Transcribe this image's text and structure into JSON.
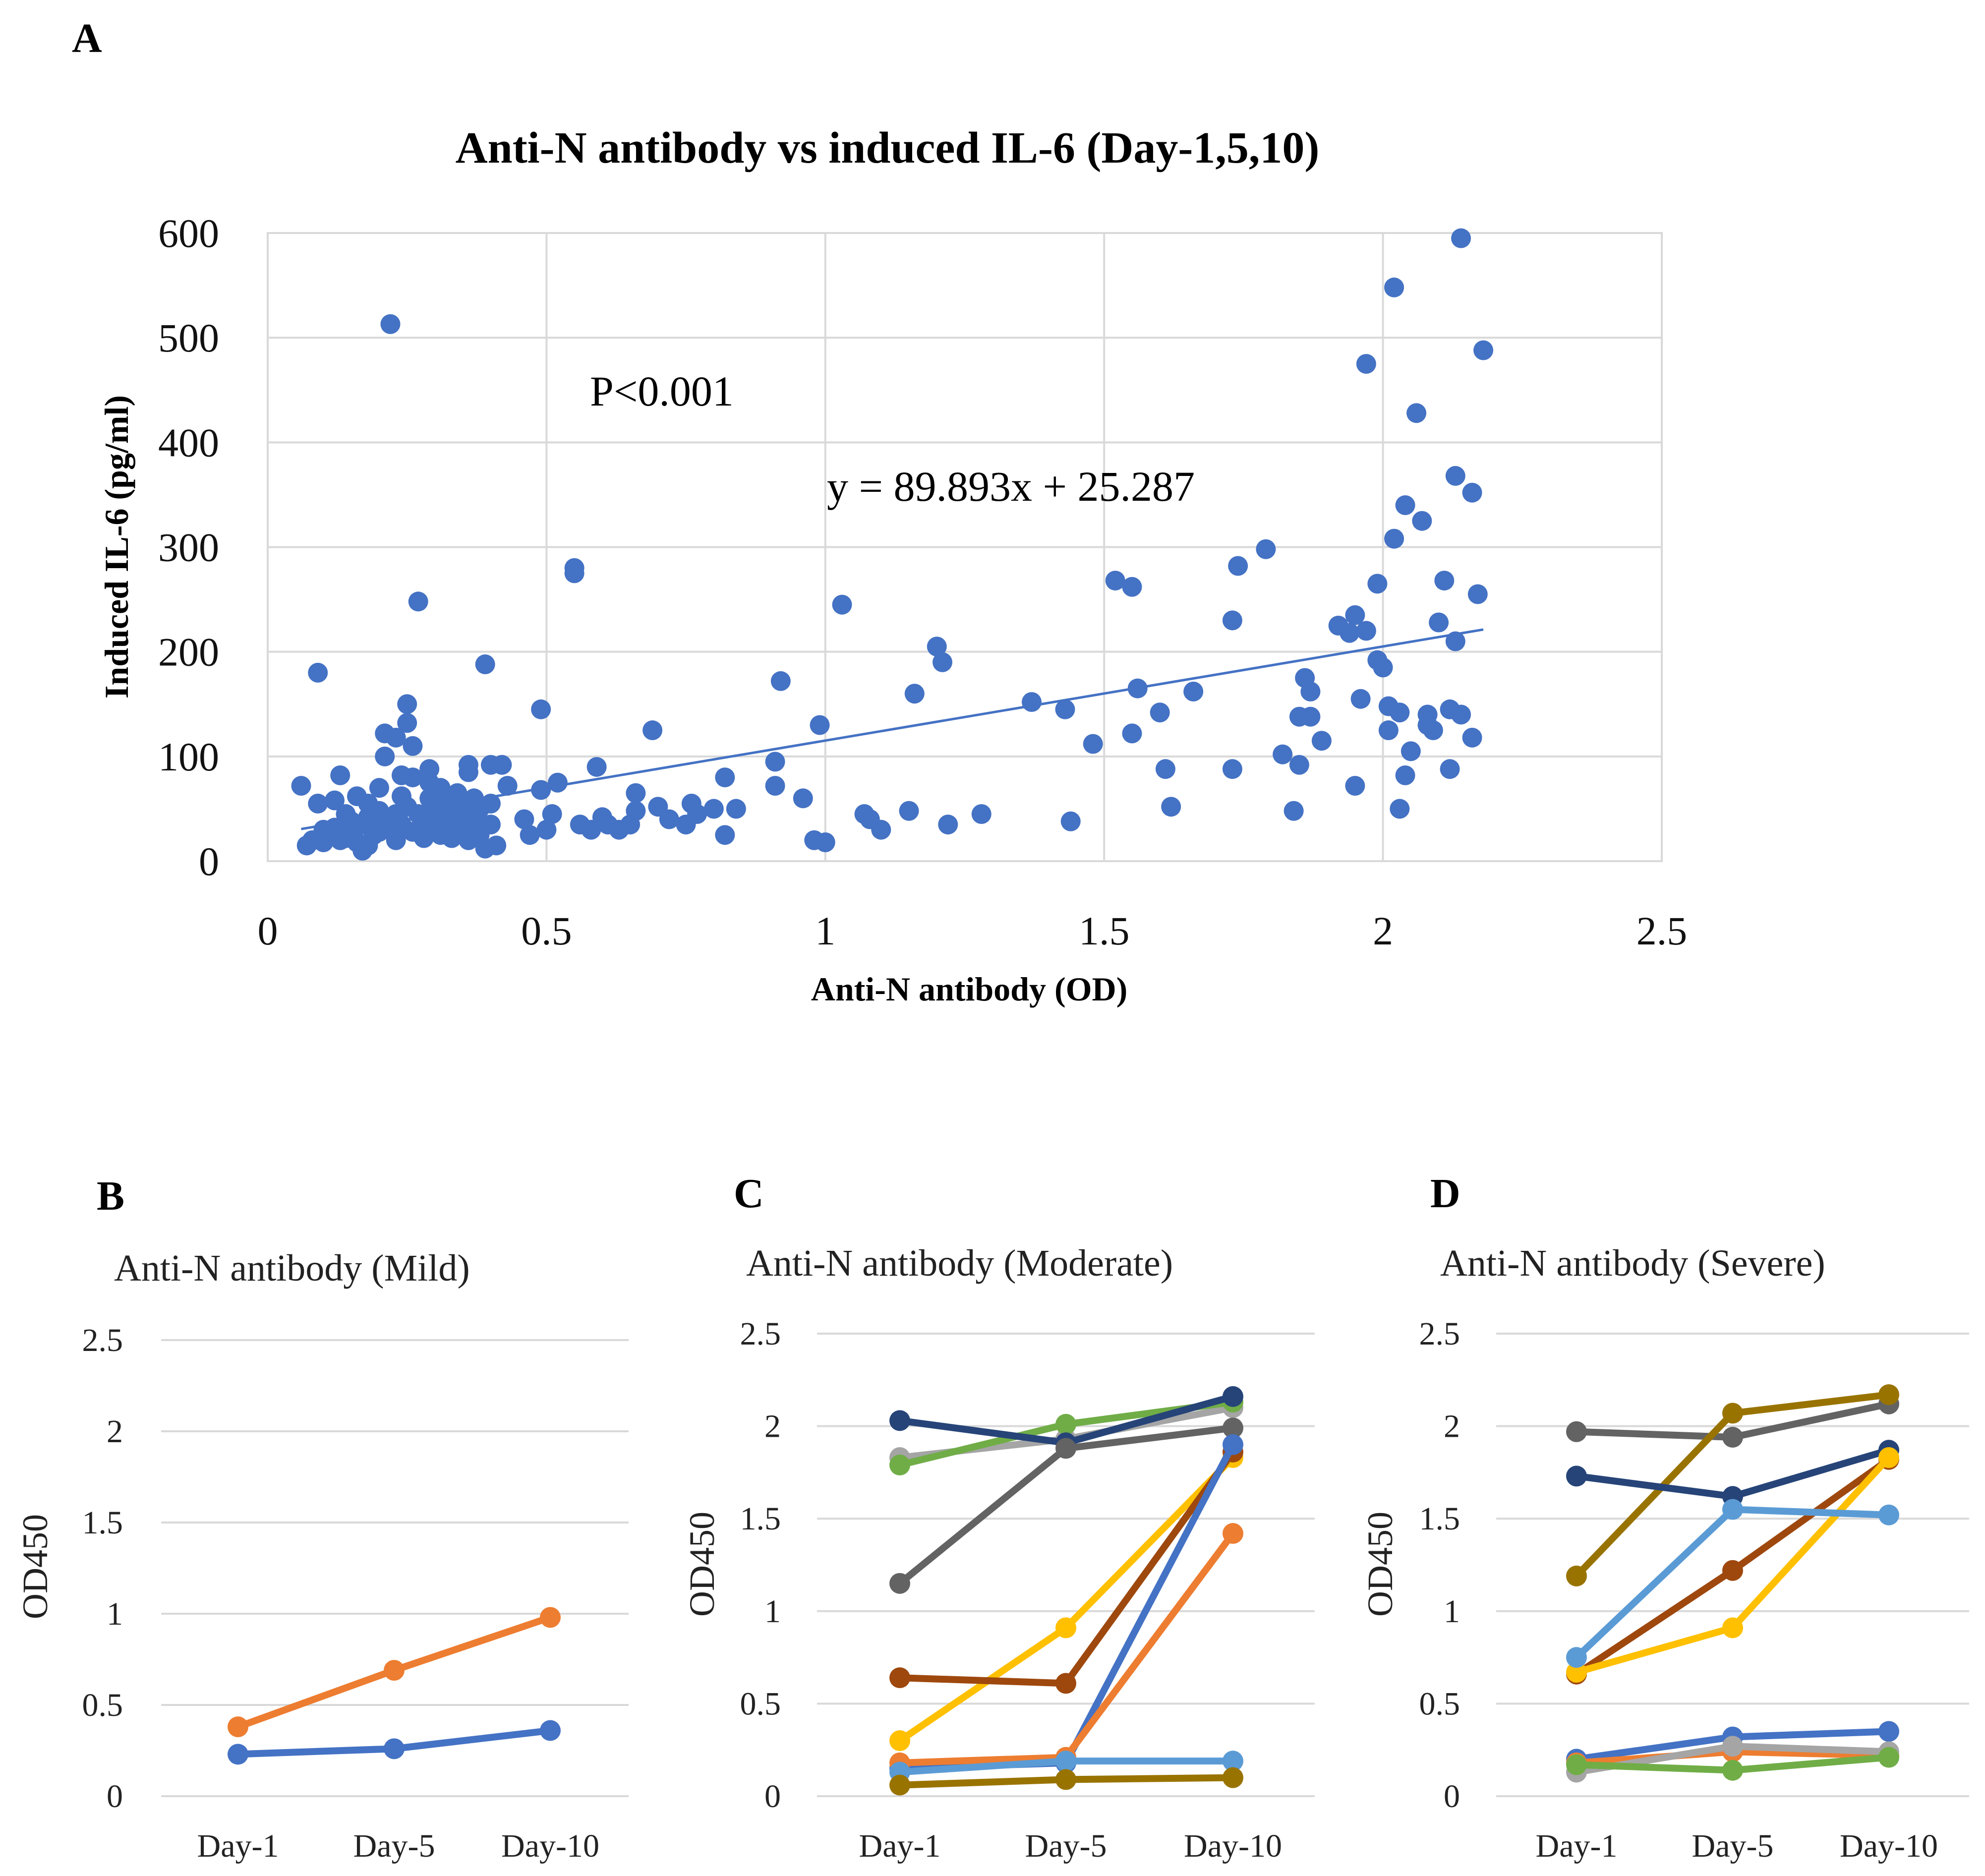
{
  "panels": {
    "A": "A",
    "B": "B",
    "C": "C",
    "D": "D"
  },
  "chart_data": [
    {
      "type": "scatter",
      "id": "A",
      "title": "Anti-N antibody vs induced IL-6 (Day-1,5,10)",
      "xlabel": "Anti-N antibody (OD)",
      "ylabel": "Induced IL-6 (pg/ml)",
      "xlim": [
        0,
        2.5
      ],
      "ylim": [
        0,
        600
      ],
      "xticks": [
        "0",
        "0.5",
        "1",
        "1.5",
        "2",
        "2.5"
      ],
      "yticks": [
        "0",
        "100",
        "200",
        "300",
        "400",
        "500",
        "600"
      ],
      "grid": true,
      "color": "#4472C4",
      "annotations": {
        "p_value": "P<0.001",
        "equation": "y = 89.893x + 25.287"
      },
      "trendline": {
        "slope": 89.893,
        "intercept": 25.287,
        "x_range": [
          0.06,
          2.18
        ]
      },
      "points": [
        [
          0.06,
          72
        ],
        [
          0.07,
          15
        ],
        [
          0.08,
          20
        ],
        [
          0.09,
          55
        ],
        [
          0.09,
          180
        ],
        [
          0.1,
          30
        ],
        [
          0.1,
          18
        ],
        [
          0.11,
          25
        ],
        [
          0.12,
          58
        ],
        [
          0.12,
          32
        ],
        [
          0.13,
          20
        ],
        [
          0.13,
          82
        ],
        [
          0.14,
          45
        ],
        [
          0.14,
          22
        ],
        [
          0.15,
          28
        ],
        [
          0.15,
          38
        ],
        [
          0.16,
          62
        ],
        [
          0.16,
          18
        ],
        [
          0.17,
          10
        ],
        [
          0.17,
          35
        ],
        [
          0.18,
          55
        ],
        [
          0.18,
          15
        ],
        [
          0.18,
          42
        ],
        [
          0.19,
          25
        ],
        [
          0.19,
          32
        ],
        [
          0.2,
          70
        ],
        [
          0.2,
          48
        ],
        [
          0.2,
          28
        ],
        [
          0.21,
          100
        ],
        [
          0.21,
          122
        ],
        [
          0.22,
          40
        ],
        [
          0.22,
          30
        ],
        [
          0.22,
          513
        ],
        [
          0.23,
          20
        ],
        [
          0.23,
          45
        ],
        [
          0.23,
          118
        ],
        [
          0.24,
          62
        ],
        [
          0.24,
          82
        ],
        [
          0.24,
          35
        ],
        [
          0.25,
          150
        ],
        [
          0.25,
          132
        ],
        [
          0.25,
          52
        ],
        [
          0.26,
          110
        ],
        [
          0.26,
          28
        ],
        [
          0.26,
          80
        ],
        [
          0.27,
          248
        ],
        [
          0.27,
          45
        ],
        [
          0.28,
          36
        ],
        [
          0.28,
          22
        ],
        [
          0.29,
          75
        ],
        [
          0.29,
          88
        ],
        [
          0.29,
          60
        ],
        [
          0.3,
          30
        ],
        [
          0.3,
          46
        ],
        [
          0.31,
          70
        ],
        [
          0.31,
          25
        ],
        [
          0.32,
          38
        ],
        [
          0.32,
          55
        ],
        [
          0.33,
          22
        ],
        [
          0.33,
          42
        ],
        [
          0.34,
          65
        ],
        [
          0.34,
          35
        ],
        [
          0.35,
          28
        ],
        [
          0.35,
          48
        ],
        [
          0.36,
          92
        ],
        [
          0.36,
          85
        ],
        [
          0.36,
          20
        ],
        [
          0.37,
          60
        ],
        [
          0.37,
          40
        ],
        [
          0.37,
          30
        ],
        [
          0.38,
          50
        ],
        [
          0.38,
          25
        ],
        [
          0.39,
          12
        ],
        [
          0.39,
          188
        ],
        [
          0.4,
          92
        ],
        [
          0.4,
          55
        ],
        [
          0.4,
          35
        ],
        [
          0.41,
          15
        ],
        [
          0.42,
          92
        ],
        [
          0.43,
          72
        ],
        [
          0.46,
          40
        ],
        [
          0.47,
          25
        ],
        [
          0.49,
          68
        ],
        [
          0.49,
          145
        ],
        [
          0.5,
          30
        ],
        [
          0.51,
          45
        ],
        [
          0.52,
          75
        ],
        [
          0.55,
          275
        ],
        [
          0.55,
          280
        ],
        [
          0.56,
          35
        ],
        [
          0.58,
          30
        ],
        [
          0.59,
          90
        ],
        [
          0.6,
          42
        ],
        [
          0.61,
          35
        ],
        [
          0.63,
          30
        ],
        [
          0.65,
          35
        ],
        [
          0.66,
          48
        ],
        [
          0.66,
          65
        ],
        [
          0.69,
          125
        ],
        [
          0.7,
          52
        ],
        [
          0.72,
          40
        ],
        [
          0.75,
          35
        ],
        [
          0.76,
          55
        ],
        [
          0.77,
          45
        ],
        [
          0.8,
          50
        ],
        [
          0.82,
          25
        ],
        [
          0.82,
          80
        ],
        [
          0.84,
          50
        ],
        [
          0.91,
          95
        ],
        [
          0.91,
          72
        ],
        [
          0.92,
          172
        ],
        [
          0.96,
          60
        ],
        [
          0.98,
          20
        ],
        [
          0.99,
          130
        ],
        [
          1.0,
          18
        ],
        [
          1.03,
          245
        ],
        [
          1.07,
          45
        ],
        [
          1.08,
          40
        ],
        [
          1.1,
          30
        ],
        [
          1.15,
          48
        ],
        [
          1.16,
          160
        ],
        [
          1.2,
          205
        ],
        [
          1.21,
          190
        ],
        [
          1.22,
          35
        ],
        [
          1.28,
          45
        ],
        [
          1.37,
          152
        ],
        [
          1.43,
          145
        ],
        [
          1.44,
          38
        ],
        [
          1.48,
          112
        ],
        [
          1.52,
          268
        ],
        [
          1.55,
          262
        ],
        [
          1.55,
          122
        ],
        [
          1.56,
          165
        ],
        [
          1.6,
          142
        ],
        [
          1.61,
          88
        ],
        [
          1.62,
          52
        ],
        [
          1.66,
          162
        ],
        [
          1.73,
          230
        ],
        [
          1.73,
          88
        ],
        [
          1.74,
          282
        ],
        [
          1.79,
          298
        ],
        [
          1.82,
          102
        ],
        [
          1.84,
          48
        ],
        [
          1.85,
          138
        ],
        [
          1.85,
          92
        ],
        [
          1.86,
          175
        ],
        [
          1.87,
          138
        ],
        [
          1.87,
          162
        ],
        [
          1.89,
          115
        ],
        [
          1.92,
          225
        ],
        [
          1.94,
          218
        ],
        [
          1.95,
          235
        ],
        [
          1.95,
          72
        ],
        [
          1.96,
          155
        ],
        [
          1.97,
          475
        ],
        [
          1.97,
          220
        ],
        [
          1.99,
          265
        ],
        [
          1.99,
          192
        ],
        [
          2.0,
          185
        ],
        [
          2.01,
          148
        ],
        [
          2.01,
          125
        ],
        [
          2.02,
          548
        ],
        [
          2.02,
          308
        ],
        [
          2.03,
          50
        ],
        [
          2.03,
          142
        ],
        [
          2.04,
          340
        ],
        [
          2.04,
          82
        ],
        [
          2.05,
          105
        ],
        [
          2.06,
          428
        ],
        [
          2.07,
          325
        ],
        [
          2.08,
          140
        ],
        [
          2.08,
          130
        ],
        [
          2.09,
          125
        ],
        [
          2.1,
          228
        ],
        [
          2.11,
          268
        ],
        [
          2.12,
          145
        ],
        [
          2.12,
          88
        ],
        [
          2.13,
          368
        ],
        [
          2.13,
          210
        ],
        [
          2.14,
          140
        ],
        [
          2.14,
          595
        ],
        [
          2.16,
          352
        ],
        [
          2.16,
          118
        ],
        [
          2.17,
          255
        ],
        [
          2.18,
          488
        ]
      ]
    },
    {
      "type": "line",
      "id": "B",
      "title": "Anti-N antibody (Mild)",
      "ylabel": "OD450",
      "categories": [
        "Day-1",
        "Day-5",
        "Day-10"
      ],
      "ylim": [
        0,
        2.5
      ],
      "yticks": [
        "0",
        "0.5",
        "1",
        "1.5",
        "2",
        "2.5"
      ],
      "series": [
        {
          "color": "#ED7D31",
          "values": [
            0.38,
            0.69,
            0.98
          ]
        },
        {
          "color": "#4472C4",
          "values": [
            0.23,
            0.26,
            0.36
          ]
        }
      ]
    },
    {
      "type": "line",
      "id": "C",
      "title": "Anti-N antibody (Moderate)",
      "ylabel": "OD450",
      "categories": [
        "Day-1",
        "Day-5",
        "Day-10"
      ],
      "ylim": [
        0,
        2.5
      ],
      "yticks": [
        "0",
        "0.5",
        "1",
        "1.5",
        "2",
        "2.5"
      ],
      "series": [
        {
          "color": "#A5A5A5",
          "values": [
            1.83,
            1.93,
            2.1
          ]
        },
        {
          "color": "#70AD47",
          "values": [
            1.79,
            2.01,
            2.13
          ]
        },
        {
          "color": "#264478",
          "values": [
            2.03,
            1.91,
            2.16
          ]
        },
        {
          "color": "#636363",
          "values": [
            1.15,
            1.88,
            1.99
          ]
        },
        {
          "color": "#FFC000",
          "values": [
            0.3,
            0.91,
            1.83
          ]
        },
        {
          "color": "#9E480E",
          "values": [
            0.64,
            0.61,
            1.86
          ]
        },
        {
          "color": "#4472C4",
          "values": [
            0.15,
            0.18,
            1.9
          ]
        },
        {
          "color": "#ED7D31",
          "values": [
            0.18,
            0.21,
            1.42
          ]
        },
        {
          "color": "#5B9BD5",
          "values": [
            0.13,
            0.19,
            0.19
          ]
        },
        {
          "color": "#997300",
          "values": [
            0.06,
            0.09,
            0.1
          ]
        }
      ]
    },
    {
      "type": "line",
      "id": "D",
      "title": "Anti-N antibody (Severe)",
      "ylabel": "OD450",
      "categories": [
        "Day-1",
        "Day-5",
        "Day-10"
      ],
      "ylim": [
        0,
        2.5
      ],
      "yticks": [
        "0",
        "0.5",
        "1",
        "1.5",
        "2",
        "2.5"
      ],
      "series": [
        {
          "color": "#636363",
          "values": [
            1.97,
            1.94,
            2.12
          ]
        },
        {
          "color": "#997300",
          "values": [
            1.19,
            2.07,
            2.17
          ]
        },
        {
          "color": "#264478",
          "values": [
            1.73,
            1.62,
            1.87
          ]
        },
        {
          "color": "#9E480E",
          "values": [
            0.66,
            1.22,
            1.82
          ]
        },
        {
          "color": "#FFC000",
          "values": [
            0.67,
            0.91,
            1.83
          ]
        },
        {
          "color": "#5B9BD5",
          "values": [
            0.75,
            1.55,
            1.52
          ]
        },
        {
          "color": "#4472C4",
          "values": [
            0.2,
            0.32,
            0.35
          ]
        },
        {
          "color": "#ED7D31",
          "values": [
            0.18,
            0.24,
            0.22
          ]
        },
        {
          "color": "#A5A5A5",
          "values": [
            0.13,
            0.27,
            0.24
          ]
        },
        {
          "color": "#70AD47",
          "values": [
            0.17,
            0.14,
            0.21
          ]
        }
      ]
    }
  ]
}
